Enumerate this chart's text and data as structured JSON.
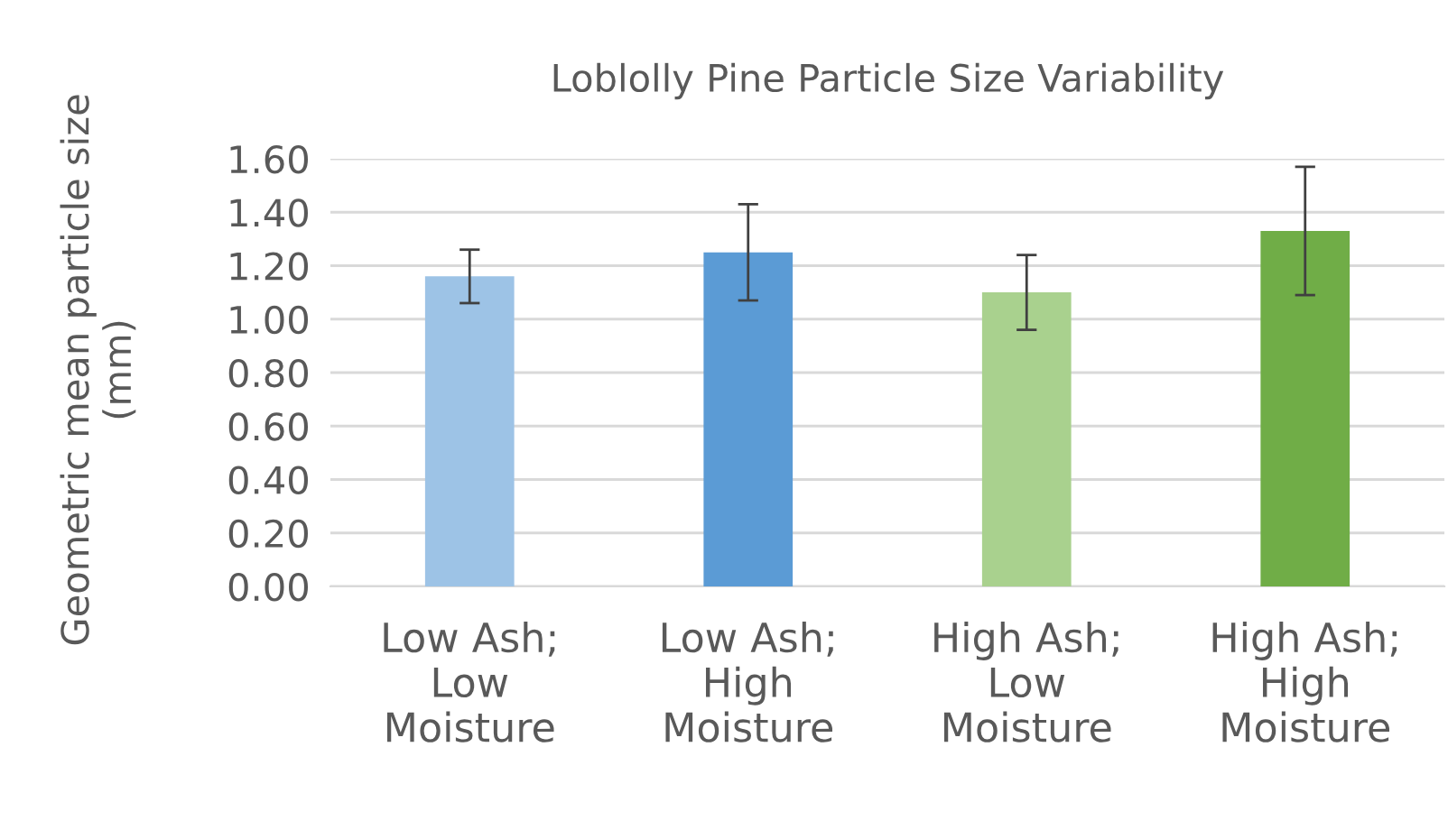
{
  "chart_data": {
    "type": "bar",
    "title": "Loblolly Pine Particle Size Variability",
    "ylabel": "Geometric mean particle size\n(mm)",
    "categories": [
      "Low Ash;\nLow\nMoisture",
      "Low Ash;\nHigh\nMoisture",
      "High Ash;\nLow\nMoisture",
      "High Ash;\nHigh\nMoisture"
    ],
    "values": [
      1.16,
      1.25,
      1.1,
      1.33
    ],
    "errors": [
      0.1,
      0.18,
      0.14,
      0.24
    ],
    "colors": [
      "#9dc3e6",
      "#5b9bd5",
      "#a9d18e",
      "#70ad47"
    ],
    "ylim": [
      0,
      1.6
    ],
    "yticks": [
      {
        "value": 0,
        "label": "0.00"
      },
      {
        "value": 0.2,
        "label": "0.20"
      },
      {
        "value": 0.4,
        "label": "0.40"
      },
      {
        "value": 0.6,
        "label": "0.60"
      },
      {
        "value": 0.8,
        "label": "0.80"
      },
      {
        "value": 1.0,
        "label": "1.00"
      },
      {
        "value": 1.2,
        "label": "1.20"
      },
      {
        "value": 1.4,
        "label": "1.40"
      },
      {
        "value": 1.6,
        "label": "1.60"
      }
    ],
    "grid": "y"
  }
}
